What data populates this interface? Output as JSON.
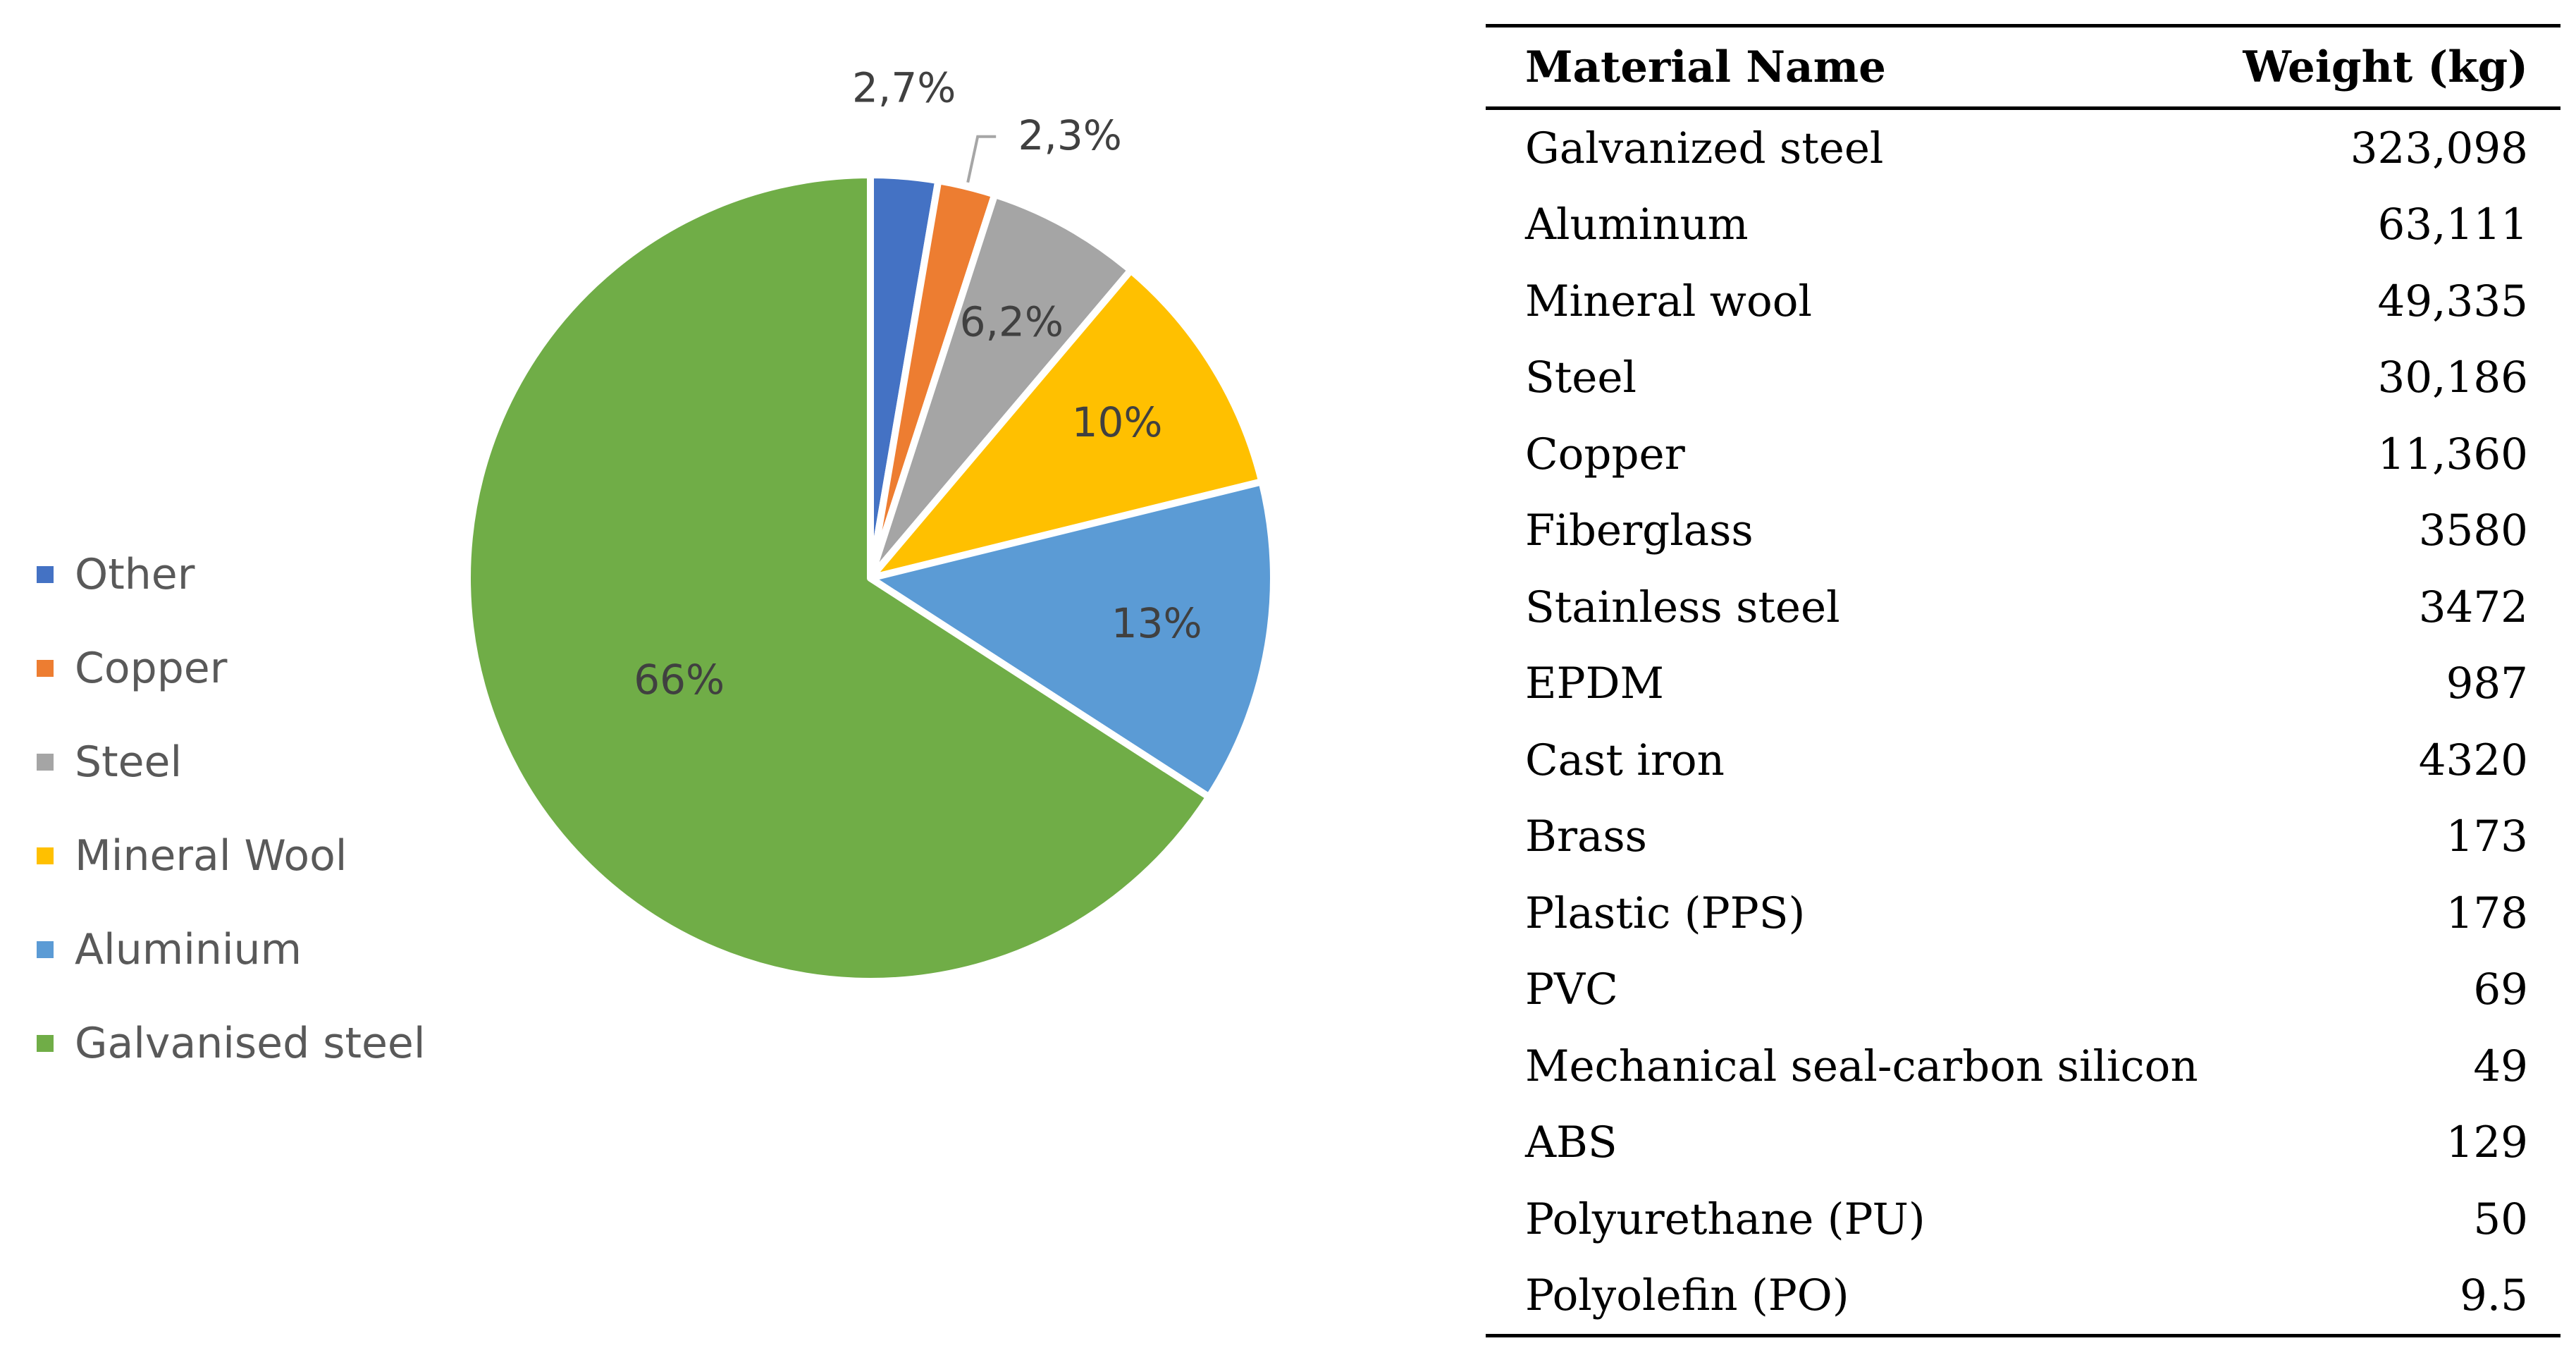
{
  "chart_data": {
    "type": "pie",
    "slices": [
      {
        "name": "Other",
        "value": 2.7,
        "label": "2,7%",
        "color": "#4472C4"
      },
      {
        "name": "Copper",
        "value": 2.3,
        "label": "2,3%",
        "color": "#ED7D31"
      },
      {
        "name": "Steel",
        "value": 6.2,
        "label": "6,2%",
        "color": "#A5A5A5"
      },
      {
        "name": "Mineral Wool",
        "value": 10,
        "label": "10%",
        "color": "#FFC000"
      },
      {
        "name": "Aluminium",
        "value": 13,
        "label": "13%",
        "color": "#5B9BD5"
      },
      {
        "name": "Galvanised steel",
        "value": 66,
        "label": "66%",
        "color": "#70AD47"
      }
    ],
    "legend_position": "left"
  },
  "table": {
    "headers": {
      "name": "Material Name",
      "weight": "Weight (kg)"
    },
    "rows": [
      {
        "name": "Galvanized steel",
        "weight": "323,098"
      },
      {
        "name": "Aluminum",
        "weight": "63,111"
      },
      {
        "name": "Mineral wool",
        "weight": "49,335"
      },
      {
        "name": "Steel",
        "weight": "30,186"
      },
      {
        "name": "Copper",
        "weight": "11,360"
      },
      {
        "name": "Fiberglass",
        "weight": "3580"
      },
      {
        "name": "Stainless steel",
        "weight": "3472"
      },
      {
        "name": "EPDM",
        "weight": "987"
      },
      {
        "name": "Cast iron",
        "weight": "4320"
      },
      {
        "name": "Brass",
        "weight": "173"
      },
      {
        "name": "Plastic (PPS)",
        "weight": "178"
      },
      {
        "name": "PVC",
        "weight": "69"
      },
      {
        "name": "Mechanical seal-carbon silicon",
        "weight": "49"
      },
      {
        "name": "ABS",
        "weight": "129"
      },
      {
        "name": "Polyurethane (PU)",
        "weight": "50"
      },
      {
        "name": "Polyolefin (PO)",
        "weight": "9.5"
      }
    ]
  }
}
